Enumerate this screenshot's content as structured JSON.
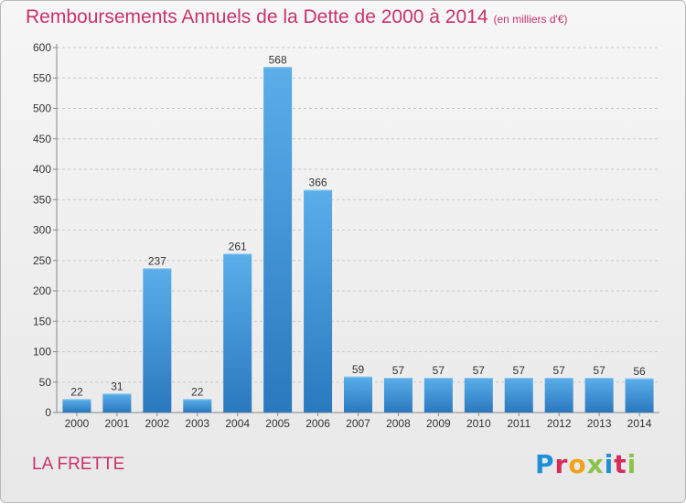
{
  "header": {
    "title": "Remboursements Annuels de la Dette de 2000 à 2014",
    "unit": "(en milliers d'€)"
  },
  "footer": {
    "commune": "LA FRETTE",
    "logo_text": "Proxiti",
    "logo_colors": [
      "#1e8fd8",
      "#d92b5a",
      "#f0a21a",
      "#8bc34a",
      "#1e8fd8",
      "#d92b5a",
      "#8bc34a"
    ]
  },
  "colors": {
    "bar_top": "#5aaeea",
    "bar_bottom": "#2a78be",
    "title": "#c8336a",
    "grid": "#c8c8c8"
  },
  "chart_data": {
    "type": "bar",
    "title": "Remboursements Annuels de la Dette de 2000 à 2014",
    "subtitle": "(en milliers d'€)",
    "xlabel": "",
    "ylabel": "",
    "categories": [
      "2000",
      "2001",
      "2002",
      "2003",
      "2004",
      "2005",
      "2006",
      "2007",
      "2008",
      "2009",
      "2010",
      "2011",
      "2012",
      "2013",
      "2014"
    ],
    "values": [
      22,
      31,
      237,
      22,
      261,
      568,
      366,
      59,
      57,
      57,
      57,
      57,
      57,
      57,
      56
    ],
    "ylim": [
      0,
      600
    ],
    "yticks": [
      0,
      50,
      100,
      150,
      200,
      250,
      300,
      350,
      400,
      450,
      500,
      550,
      600
    ],
    "grid": true,
    "data_labels": true
  }
}
